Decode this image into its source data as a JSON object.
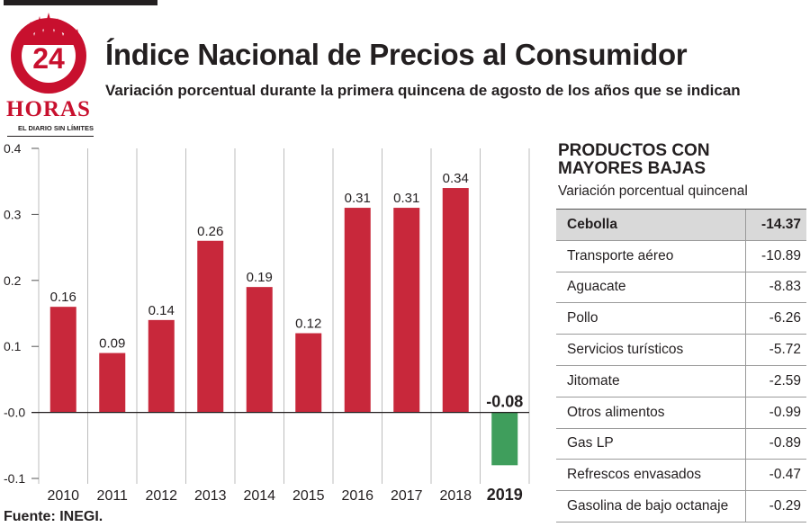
{
  "brand": {
    "logo_number": "24",
    "logo_name": "HORAS",
    "tagline": "EL DIARIO SIN LÍMITES"
  },
  "title": "Índice Nacional de Precios al Consumidor",
  "subtitle": "Variación porcentual durante la primera quincena de agosto de los años que se indican",
  "source": "Fuente: INEGI.",
  "colors": {
    "positive": "#c8283b",
    "negative": "#3f9e5c",
    "brand": "#c8102e"
  },
  "chart_data": {
    "type": "bar",
    "categories": [
      "2010",
      "2011",
      "2012",
      "2013",
      "2014",
      "2015",
      "2016",
      "2017",
      "2018",
      "2019"
    ],
    "values": [
      0.16,
      0.09,
      0.14,
      0.26,
      0.19,
      0.12,
      0.31,
      0.31,
      0.34,
      -0.08
    ],
    "value_labels": [
      "0.16",
      "0.09",
      "0.14",
      "0.26",
      "0.19",
      "0.12",
      "0.31",
      "0.31",
      "0.34",
      "-0.08"
    ],
    "highlight_category": "2019",
    "ylim": [
      -0.1,
      0.4
    ],
    "yticks": [
      -0.1,
      0.0,
      0.1,
      0.2,
      0.3,
      0.4
    ],
    "ytick_labels": [
      "-0.1",
      "-0.0",
      "0.1",
      "0.2",
      "0.3",
      "0.4"
    ],
    "grid": "vertical",
    "title": "",
    "xlabel": "",
    "ylabel": ""
  },
  "table": {
    "title": "PRODUCTOS CON MAYORES BAJAS",
    "subtitle": "Variación porcentual quincenal",
    "rows": [
      {
        "name": "Cebolla",
        "value": "-14.37",
        "highlight": true
      },
      {
        "name": "Transporte aéreo",
        "value": "-10.89"
      },
      {
        "name": "Aguacate",
        "value": "-8.83"
      },
      {
        "name": "Pollo",
        "value": "-6.26"
      },
      {
        "name": "Servicios turísticos",
        "value": "-5.72"
      },
      {
        "name": "Jitomate",
        "value": "-2.59"
      },
      {
        "name": "Otros alimentos",
        "value": "-0.99"
      },
      {
        "name": "Gas LP",
        "value": "-0.89"
      },
      {
        "name": "Refrescos envasados",
        "value": "-0.47"
      },
      {
        "name": "Gasolina de bajo octanaje",
        "value": "-0.29"
      }
    ]
  }
}
